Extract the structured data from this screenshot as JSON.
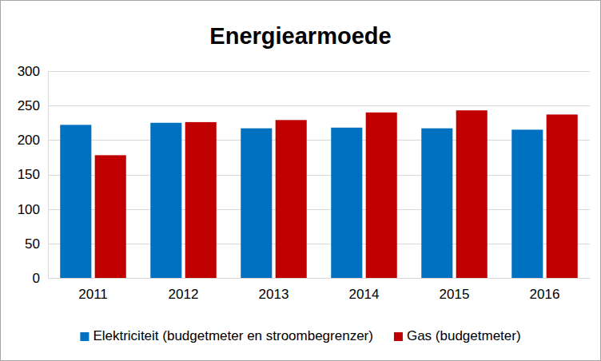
{
  "chart_data": {
    "type": "bar",
    "title": "Energiearmoede",
    "categories": [
      "2011",
      "2012",
      "2013",
      "2014",
      "2015",
      "2016"
    ],
    "series": [
      {
        "name": "Elektriciteit (budgetmeter en stroombegrenzer)",
        "color": "#0070c0",
        "values": [
          222,
          225,
          217,
          218,
          217,
          215
        ]
      },
      {
        "name": "Gas (budgetmeter)",
        "color": "#c00000",
        "values": [
          178,
          226,
          229,
          240,
          243,
          237
        ]
      }
    ],
    "ylim": [
      0,
      300
    ],
    "yticks": [
      0,
      50,
      100,
      150,
      200,
      250,
      300
    ],
    "grid": true,
    "legend": "bottom"
  }
}
